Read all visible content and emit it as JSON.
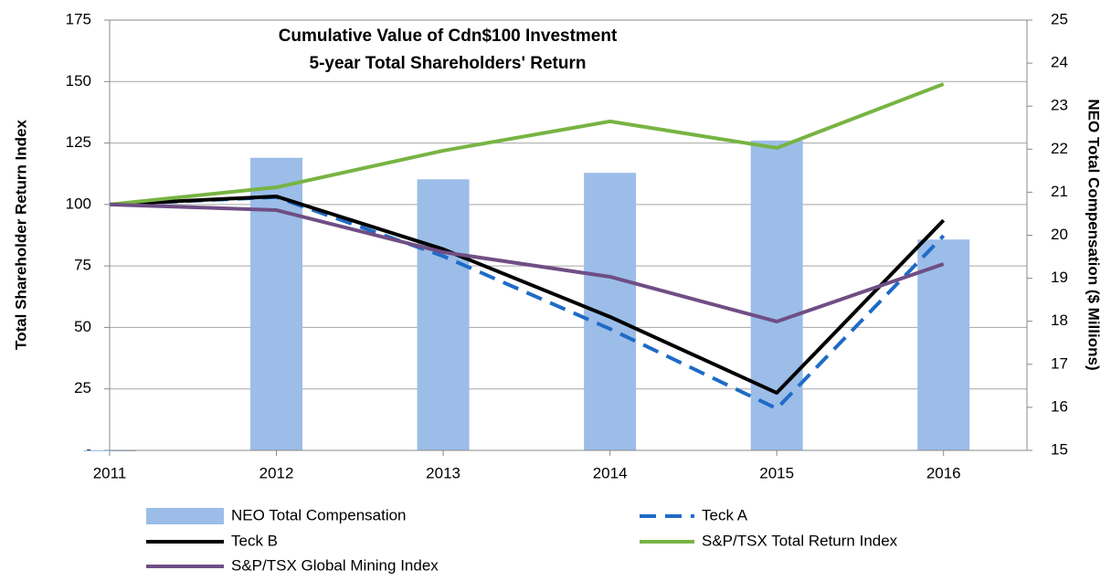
{
  "chart_data": {
    "type": "combo",
    "title": [
      "Cumulative Value of Cdn$100 Investment",
      "5-year Total Shareholders' Return"
    ],
    "y_label": "Total Shareholder Return Index",
    "y2_label": "NEO Total Compensation ($ Millions)",
    "x": [
      2011,
      2012,
      2013,
      2014,
      2015,
      2016
    ],
    "xlim": [
      2011,
      2016.5
    ],
    "xticks": [
      2011,
      2012,
      2013,
      2014,
      2015,
      2016
    ],
    "ylim": [
      0,
      175
    ],
    "yticks": [
      {
        "value": 0,
        "label": "-"
      },
      25,
      50,
      75,
      100,
      125,
      150,
      175
    ],
    "y2lim": [
      15,
      25
    ],
    "y2ticks": [
      15,
      16,
      17,
      18,
      19,
      20,
      21,
      22,
      23,
      24,
      25
    ],
    "grid": true,
    "legend": "bottom",
    "series": [
      {
        "name": "NEO Total Compensation",
        "type": "bar",
        "axis": "y2",
        "color": "#9bbde8",
        "values": [
          15,
          21.8,
          21.3,
          21.45,
          22.2,
          19.9
        ]
      },
      {
        "name": "Teck A",
        "type": "line",
        "dash": true,
        "color": "#1f6bc6",
        "values": [
          100,
          103,
          79,
          49.4,
          17,
          87.3
        ]
      },
      {
        "name": "Teck B",
        "type": "line",
        "color": "#000000",
        "values": [
          100,
          103.3,
          81.8,
          54.3,
          23.4,
          93.6
        ]
      },
      {
        "name": "S&P/TSX Total Return Index",
        "type": "line",
        "color": "#77b443",
        "values": [
          100,
          107,
          121.9,
          133.8,
          123,
          149
        ]
      },
      {
        "name": "S&P/TSX Global Mining Index",
        "type": "line",
        "color": "#6f4e85",
        "values": [
          100,
          97.7,
          80.6,
          70.6,
          52.4,
          75.8
        ]
      }
    ]
  }
}
